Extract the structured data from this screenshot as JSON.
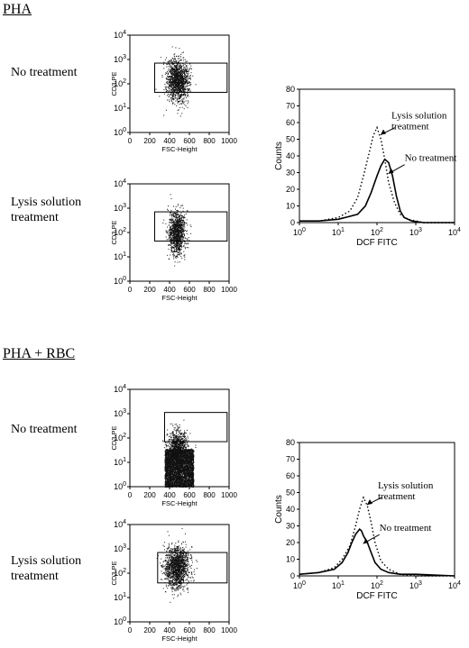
{
  "sections": [
    {
      "title": "PHA",
      "rows": [
        {
          "label": "No treatment",
          "dot_cluster": "compact"
        },
        {
          "label": "Lysis solution\ntreatment",
          "dot_cluster": "narrow"
        }
      ],
      "histogram": {
        "ylabel": "Counts",
        "xlabel": "DCF FITC",
        "annotations": [
          "Lysis solution\ntreatment",
          "No treatment"
        ]
      }
    },
    {
      "title": "PHA + RBC",
      "rows": [
        {
          "label": "No treatment",
          "dot_cluster": "dense-band"
        },
        {
          "label": "Lysis solution\ntreatment",
          "dot_cluster": "compact"
        }
      ],
      "histogram": {
        "ylabel": "Counts",
        "xlabel": "DCF FITC",
        "annotations": [
          "Lysis solution\ntreatment",
          "No treatment"
        ]
      }
    }
  ],
  "chart_data": [
    {
      "type": "scatter",
      "panel": "PHA - No treatment",
      "xlabel": "FSC-Height",
      "ylabel": "CD3 PE",
      "xlim": [
        0,
        1000
      ],
      "ylim_log": [
        0,
        4
      ],
      "xticks": [
        "0",
        "200",
        "400",
        "600",
        "800",
        "1000"
      ],
      "yticks": [
        "10",
        "10",
        "10",
        "10",
        "10"
      ],
      "ytick_exponents": [
        "0",
        "1",
        "2",
        "3",
        "4"
      ],
      "gate": {
        "x": [
          250,
          980
        ],
        "y_log": [
          1.65,
          2.85
        ]
      }
    },
    {
      "type": "scatter",
      "panel": "PHA - Lysis solution treatment",
      "xlabel": "FSC-Height",
      "ylabel": "CD3 PE",
      "xlim": [
        0,
        1000
      ],
      "ylim_log": [
        0,
        4
      ],
      "xticks": [
        "0",
        "200",
        "400",
        "600",
        "800",
        "1000"
      ],
      "yticks": [
        "10",
        "10",
        "10",
        "10",
        "10"
      ],
      "ytick_exponents": [
        "0",
        "1",
        "2",
        "3",
        "4"
      ],
      "gate": {
        "x": [
          250,
          980
        ],
        "y_log": [
          1.65,
          2.85
        ]
      }
    },
    {
      "type": "line",
      "panel": "PHA - DCF histogram",
      "xlabel": "DCF FITC",
      "ylabel": "Counts",
      "xlim_log": [
        0,
        4
      ],
      "ylim": [
        0,
        80
      ],
      "xticks": [
        "10",
        "10",
        "10",
        "10",
        "10"
      ],
      "xtick_exponents": [
        "0",
        "1",
        "2",
        "3",
        "4"
      ],
      "yticks": [
        "0",
        "10",
        "20",
        "30",
        "40",
        "50",
        "60",
        "70",
        "80"
      ],
      "series": [
        {
          "name": "No treatment",
          "style": "solid",
          "x_log": [
            0,
            0.5,
            1.0,
            1.5,
            1.7,
            1.85,
            2.0,
            2.1,
            2.2,
            2.3,
            2.4,
            2.5,
            2.6,
            2.7,
            2.9,
            3.2,
            4.0
          ],
          "y": [
            1,
            1,
            2,
            5,
            10,
            18,
            28,
            34,
            38,
            36,
            28,
            16,
            7,
            3,
            1,
            0,
            0
          ]
        },
        {
          "name": "Lysis solution treatment",
          "style": "dotted",
          "x_log": [
            0,
            0.5,
            1.0,
            1.3,
            1.5,
            1.65,
            1.8,
            1.9,
            2.0,
            2.1,
            2.2,
            2.3,
            2.45,
            2.6,
            2.8,
            3.2,
            4.0
          ],
          "y": [
            1,
            1,
            3,
            7,
            15,
            28,
            42,
            52,
            57,
            50,
            38,
            24,
            12,
            5,
            2,
            0,
            0
          ]
        }
      ]
    },
    {
      "type": "scatter",
      "panel": "PHA + RBC - No treatment",
      "xlabel": "FSC-Height",
      "ylabel": "CD3 PE",
      "xlim": [
        0,
        1000
      ],
      "ylim_log": [
        0,
        4
      ],
      "xticks": [
        "0",
        "200",
        "400",
        "600",
        "800",
        "1000"
      ],
      "yticks": [
        "10",
        "10",
        "10",
        "10",
        "10"
      ],
      "ytick_exponents": [
        "0",
        "1",
        "2",
        "3",
        "4"
      ],
      "gate": {
        "x": [
          350,
          980
        ],
        "y_log": [
          1.85,
          3.05
        ]
      }
    },
    {
      "type": "scatter",
      "panel": "PHA + RBC - Lysis solution treatment",
      "xlabel": "FSC-Height",
      "ylabel": "CD3 PE",
      "xlim": [
        0,
        1000
      ],
      "ylim_log": [
        0,
        4
      ],
      "xticks": [
        "0",
        "200",
        "400",
        "600",
        "800",
        "1000"
      ],
      "yticks": [
        "10",
        "10",
        "10",
        "10",
        "10"
      ],
      "ytick_exponents": [
        "0",
        "1",
        "2",
        "3",
        "4"
      ],
      "gate": {
        "x": [
          280,
          980
        ],
        "y_log": [
          1.6,
          2.85
        ]
      }
    },
    {
      "type": "line",
      "panel": "PHA + RBC - DCF histogram",
      "xlabel": "DCF FITC",
      "ylabel": "Counts",
      "xlim_log": [
        0,
        4
      ],
      "ylim": [
        0,
        80
      ],
      "xticks": [
        "10",
        "10",
        "10",
        "10",
        "10"
      ],
      "xtick_exponents": [
        "0",
        "1",
        "2",
        "3",
        "4"
      ],
      "yticks": [
        "0",
        "10",
        "20",
        "30",
        "40",
        "50",
        "60",
        "70",
        "80"
      ],
      "series": [
        {
          "name": "No treatment",
          "style": "solid",
          "x_log": [
            0,
            0.5,
            0.9,
            1.1,
            1.25,
            1.35,
            1.45,
            1.55,
            1.6,
            1.65,
            1.75,
            1.85,
            1.95,
            2.1,
            2.3,
            2.6,
            3.0,
            4.0
          ],
          "y": [
            1,
            2,
            4,
            8,
            14,
            20,
            25,
            28,
            27,
            24,
            20,
            14,
            8,
            4,
            2,
            1,
            1,
            0
          ]
        },
        {
          "name": "Lysis solution treatment",
          "style": "dotted",
          "x_log": [
            0,
            0.5,
            0.9,
            1.1,
            1.3,
            1.45,
            1.55,
            1.65,
            1.75,
            1.85,
            1.95,
            2.1,
            2.3,
            2.6,
            3.0,
            4.0
          ],
          "y": [
            1,
            2,
            5,
            10,
            18,
            30,
            40,
            47,
            42,
            32,
            20,
            9,
            4,
            1,
            0,
            0
          ]
        }
      ]
    }
  ]
}
